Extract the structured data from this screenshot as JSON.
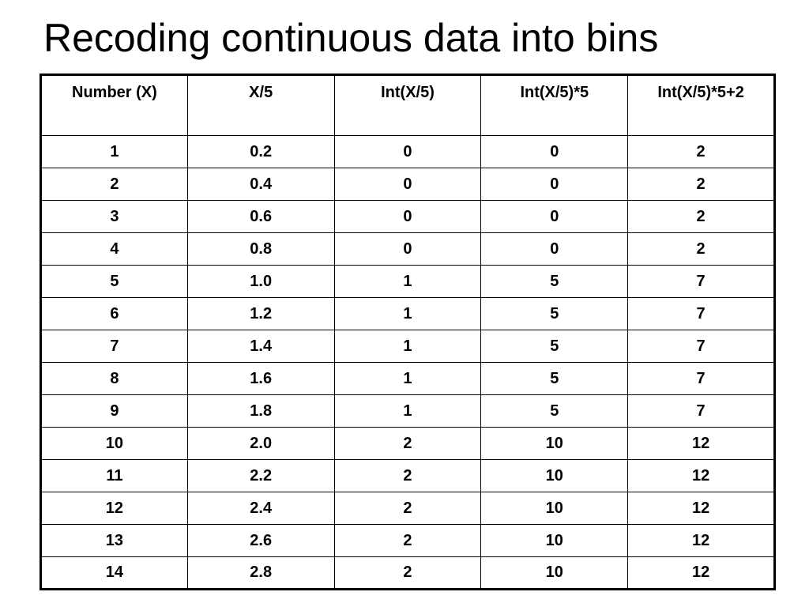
{
  "slide": {
    "title": "Recoding continuous data into bins"
  },
  "table": {
    "headers": [
      "Number (X)",
      "X/5",
      "Int(X/5)",
      "Int(X/5)*5",
      "Int(X/5)*5+2"
    ],
    "rows": [
      [
        "1",
        "0.2",
        "0",
        "0",
        "2"
      ],
      [
        "2",
        "0.4",
        "0",
        "0",
        "2"
      ],
      [
        "3",
        "0.6",
        "0",
        "0",
        "2"
      ],
      [
        "4",
        "0.8",
        "0",
        "0",
        "2"
      ],
      [
        "5",
        "1.0",
        "1",
        "5",
        "7"
      ],
      [
        "6",
        "1.2",
        "1",
        "5",
        "7"
      ],
      [
        "7",
        "1.4",
        "1",
        "5",
        "7"
      ],
      [
        "8",
        "1.6",
        "1",
        "5",
        "7"
      ],
      [
        "9",
        "1.8",
        "1",
        "5",
        "7"
      ],
      [
        "10",
        "2.0",
        "2",
        "10",
        "12"
      ],
      [
        "11",
        "2.2",
        "2",
        "10",
        "12"
      ],
      [
        "12",
        "2.4",
        "2",
        "10",
        "12"
      ],
      [
        "13",
        "2.6",
        "2",
        "10",
        "12"
      ],
      [
        "14",
        "2.8",
        "2",
        "10",
        "12"
      ]
    ]
  }
}
